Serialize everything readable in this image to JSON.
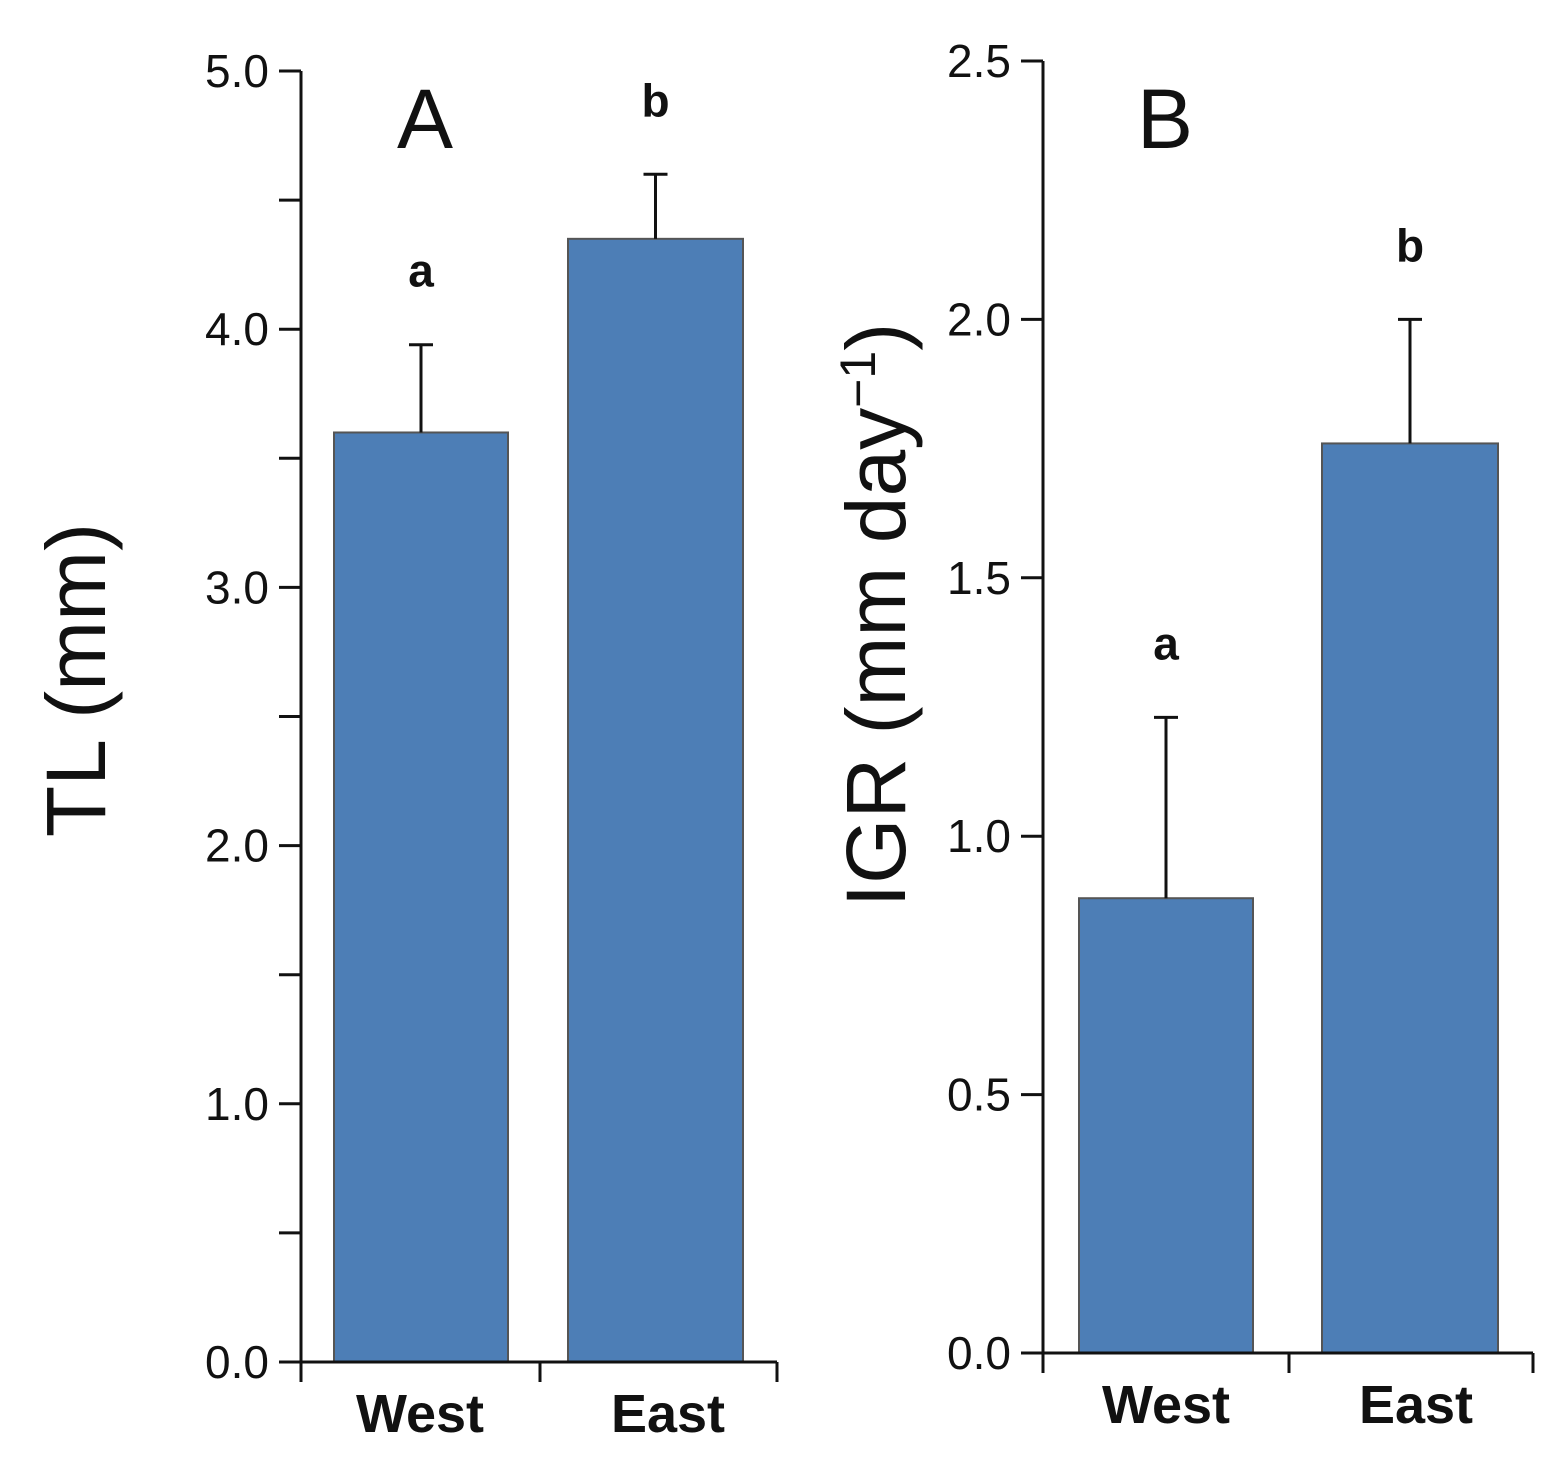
{
  "chart_data": [
    {
      "type": "bar",
      "panel": "A",
      "categories": [
        "West",
        "East"
      ],
      "values": [
        3.6,
        4.35
      ],
      "errors": [
        0.34,
        0.25
      ],
      "significance": [
        "a",
        "b"
      ],
      "ylabel": "TL (mm)",
      "ylim": [
        0,
        5
      ],
      "yticks": [
        0,
        1,
        2,
        3,
        4,
        5
      ],
      "ytick_labels": [
        "0.0",
        "1.0",
        "2.0",
        "3.0",
        "4.0",
        "5.0"
      ],
      "minor_yticks": [
        0.5,
        1.5,
        2.5,
        3.5,
        4.5
      ],
      "bar_color": "#4d7eb6"
    },
    {
      "type": "bar",
      "panel": "B",
      "categories": [
        "West",
        "East"
      ],
      "values": [
        0.88,
        1.76
      ],
      "errors": [
        0.35,
        0.24
      ],
      "significance": [
        "a",
        "b"
      ],
      "ylabel_main": "IGR (mm day",
      "ylabel_sup": "−1",
      "ylabel_close": ")",
      "ylim": [
        0,
        2.5
      ],
      "yticks": [
        0,
        0.5,
        1,
        1.5,
        2,
        2.5
      ],
      "ytick_labels": [
        "0.0",
        "0.5",
        "1.0",
        "1.5",
        "2.0",
        "2.5"
      ],
      "minor_yticks": [],
      "bar_color": "#4d7eb6"
    }
  ]
}
